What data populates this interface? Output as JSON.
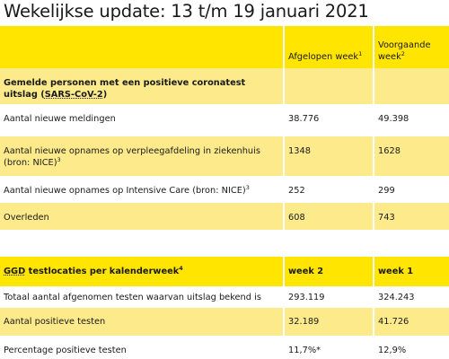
{
  "title": "Wekelijkse update: 13 t/m 19 januari 2021",
  "table1": {
    "header": {
      "col2": "Afgelopen week",
      "col2_sup": "1",
      "col3": "Voorgaande week",
      "col3_sup": "2"
    },
    "section": {
      "text_before": "Gemelde personen met een positieve coronatest uitslag (",
      "abbr": "SARS-CoV-2",
      "text_after": ")"
    },
    "rows": [
      {
        "label": "Aantal nieuwe meldingen",
        "sup": "",
        "current": "38.776",
        "previous": "49.398"
      },
      {
        "label": "Aantal nieuwe opnames op verpleegafdeling in ziekenhuis (bron: NICE)",
        "sup": "3",
        "current": "1348",
        "previous": "1628"
      },
      {
        "label": "Aantal nieuwe opnames op Intensive Care (bron: NICE)",
        "sup": "3",
        "current": "252",
        "previous": "299"
      },
      {
        "label": "Overleden",
        "sup": "",
        "current": "608",
        "previous": "743"
      }
    ]
  },
  "table2": {
    "header": {
      "abbr": "GGD",
      "label": " testlocaties per kalenderweek",
      "sup": "4",
      "col2": "week 2",
      "col3": "week 1"
    },
    "rows": [
      {
        "label": "Totaal aantal afgenomen testen waarvan uitslag bekend is",
        "current": "293.119",
        "previous": "324.243"
      },
      {
        "label": "Aantal positieve testen",
        "current": "32.189",
        "previous": "41.726"
      },
      {
        "label": "Percentage positieve testen",
        "current": "11,7%*",
        "previous": "12,9%"
      }
    ]
  }
}
